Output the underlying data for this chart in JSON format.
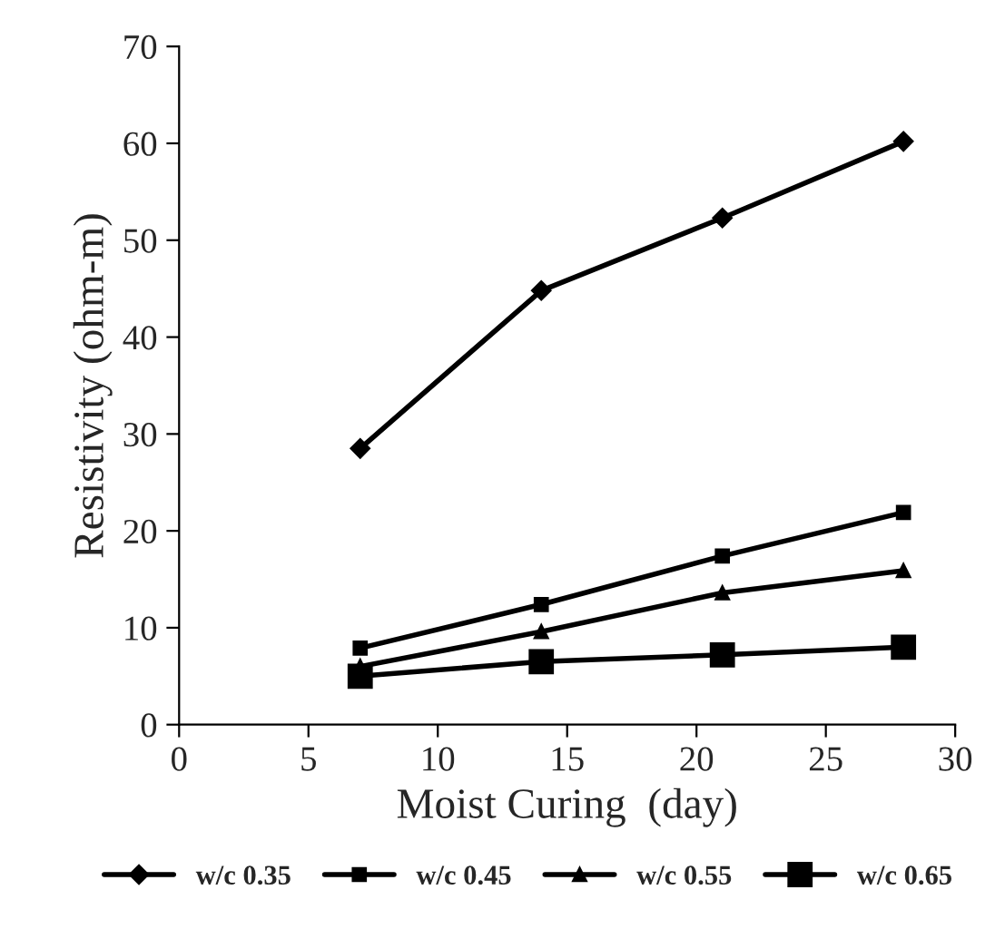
{
  "chart_data": {
    "type": "line",
    "xlabel": "Moist Curing  (day)",
    "ylabel": "Resistivity (ohm-m)",
    "x": [
      7,
      14,
      21,
      28
    ],
    "series": [
      {
        "name": "w/c 0.35",
        "color": "#000000",
        "marker": "diamond",
        "values": [
          28.5,
          44.8,
          52.3,
          60.2
        ]
      },
      {
        "name": "w/c 0.45",
        "color": "#000000",
        "marker": "square",
        "values": [
          7.9,
          12.4,
          17.4,
          21.9
        ]
      },
      {
        "name": "w/c 0.55",
        "color": "#000000",
        "marker": "triangle",
        "values": [
          6.0,
          9.6,
          13.6,
          15.9
        ]
      },
      {
        "name": "w/c 0.65",
        "color": "#000000",
        "marker": "square",
        "values": [
          5.0,
          6.5,
          7.2,
          8.0
        ]
      }
    ],
    "xlim": [
      0,
      30
    ],
    "xticks": [
      0,
      5,
      10,
      15,
      20,
      25,
      30
    ],
    "ylim": [
      0,
      70
    ],
    "yticks": [
      0,
      10,
      20,
      30,
      40,
      50,
      60,
      70
    ],
    "grid": false,
    "legend": "bottom",
    "line_style": "solid"
  }
}
